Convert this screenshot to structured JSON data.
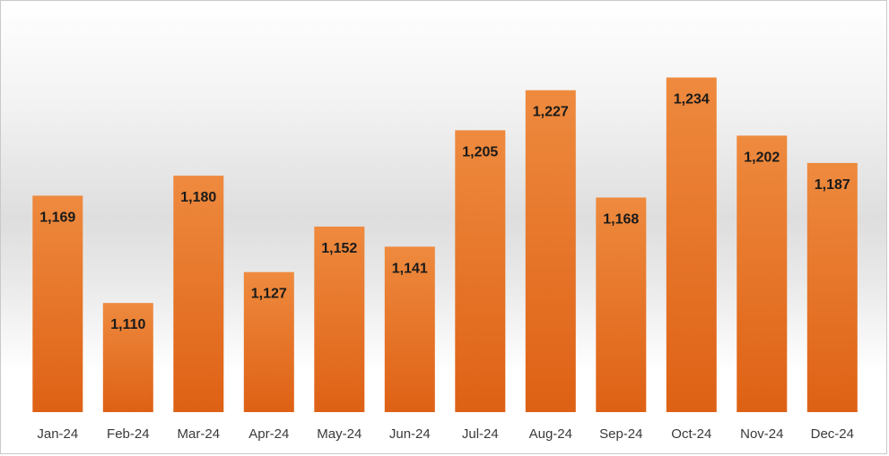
{
  "chart_data": {
    "type": "bar",
    "title": "",
    "xlabel": "",
    "ylabel": "",
    "categories": [
      "Jan-24",
      "Feb-24",
      "Mar-24",
      "Apr-24",
      "May-24",
      "Jun-24",
      "Jul-24",
      "Aug-24",
      "Sep-24",
      "Oct-24",
      "Nov-24",
      "Dec-24"
    ],
    "values": [
      1169,
      1110,
      1180,
      1127,
      1152,
      1141,
      1205,
      1227,
      1168,
      1234,
      1202,
      1187
    ],
    "value_labels": [
      "1,169",
      "1,110",
      "1,180",
      "1,127",
      "1,152",
      "1,141",
      "1,205",
      "1,227",
      "1,168",
      "1,234",
      "1,202",
      "1,187"
    ],
    "ylim": [
      1050,
      1240
    ],
    "grid": false,
    "legend": "none",
    "colors": {
      "bar_top": "#ee8a3e",
      "bar_bottom": "#de6115",
      "label": "#1a1a1a",
      "tick": "#3a3a3a"
    }
  }
}
